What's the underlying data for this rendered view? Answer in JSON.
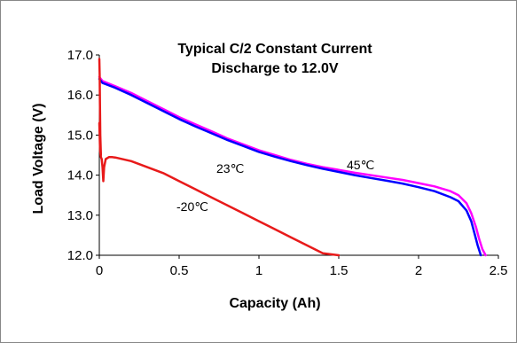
{
  "chart_data": {
    "type": "line",
    "title_line1": "Typical C/2 Constant Current",
    "title_line2": "Discharge to 12.0V",
    "xlabel": "Capacity (Ah)",
    "ylabel": "Load Voltage (V)",
    "xlim": [
      0,
      2.5
    ],
    "ylim": [
      12.0,
      17.0
    ],
    "xticks": [
      0,
      0.5,
      1,
      1.5,
      2,
      2.5
    ],
    "xtick_labels": [
      "0",
      "0.5",
      "1",
      "1.5",
      "2",
      "2.5"
    ],
    "yticks": [
      12.0,
      13.0,
      14.0,
      15.0,
      16.0,
      17.0
    ],
    "ytick_labels": [
      "12.0",
      "13.0",
      "14.0",
      "15.0",
      "16.0",
      "17.0"
    ],
    "grid": false,
    "series": [
      {
        "color": "#ff00ff",
        "label_ref": "45c",
        "x": [
          0,
          0.02,
          0.1,
          0.2,
          0.3,
          0.4,
          0.5,
          0.6,
          0.7,
          0.8,
          0.9,
          1.0,
          1.1,
          1.2,
          1.3,
          1.4,
          1.5,
          1.6,
          1.7,
          1.8,
          1.9,
          2.0,
          2.1,
          2.2,
          2.25,
          2.3,
          2.33,
          2.36,
          2.38,
          2.4,
          2.42
        ],
        "y": [
          16.45,
          16.35,
          16.22,
          16.05,
          15.85,
          15.65,
          15.45,
          15.27,
          15.1,
          14.92,
          14.77,
          14.62,
          14.5,
          14.38,
          14.28,
          14.2,
          14.13,
          14.06,
          14.0,
          13.94,
          13.88,
          13.8,
          13.72,
          13.6,
          13.5,
          13.3,
          13.05,
          12.7,
          12.4,
          12.15,
          12.0
        ]
      },
      {
        "color": "#0000ff",
        "label_ref": "23c",
        "x": [
          0,
          0.02,
          0.1,
          0.2,
          0.3,
          0.4,
          0.5,
          0.6,
          0.7,
          0.8,
          0.9,
          1.0,
          1.1,
          1.2,
          1.3,
          1.4,
          1.5,
          1.6,
          1.7,
          1.8,
          1.9,
          2.0,
          2.1,
          2.2,
          2.25,
          2.3,
          2.33,
          2.35,
          2.37,
          2.39
        ],
        "y": [
          16.4,
          16.3,
          16.18,
          16.0,
          15.8,
          15.6,
          15.4,
          15.22,
          15.05,
          14.88,
          14.73,
          14.58,
          14.46,
          14.35,
          14.25,
          14.16,
          14.08,
          14.0,
          13.93,
          13.86,
          13.79,
          13.7,
          13.6,
          13.45,
          13.35,
          13.12,
          12.85,
          12.55,
          12.25,
          12.0
        ]
      },
      {
        "color": "#e81a1a",
        "label_ref": "m20c",
        "x": [
          0,
          0.005,
          0.01,
          0.015,
          0.02,
          0.025,
          0.03,
          0.04,
          0.06,
          0.08,
          0.1,
          0.2,
          0.3,
          0.4,
          0.5,
          0.6,
          0.7,
          0.8,
          0.9,
          1.0,
          1.1,
          1.2,
          1.3,
          1.4,
          1.5
        ],
        "y": [
          15.3,
          14.6,
          14.45,
          14.4,
          14.2,
          13.85,
          14.2,
          14.4,
          14.45,
          14.45,
          14.44,
          14.35,
          14.2,
          14.05,
          13.85,
          13.65,
          13.45,
          13.25,
          13.05,
          12.85,
          12.65,
          12.45,
          12.25,
          12.05,
          12.0
        ]
      },
      {
        "color": "#e81a1a",
        "label_ref": "spike",
        "x": [
          0,
          0.002,
          0.004,
          0.006,
          0.01
        ],
        "y": [
          16.9,
          16.5,
          15.8,
          15.0,
          14.5
        ]
      }
    ],
    "annotations": {
      "t45": "45℃",
      "t23": "23℃",
      "tm20": "-20℃"
    }
  }
}
